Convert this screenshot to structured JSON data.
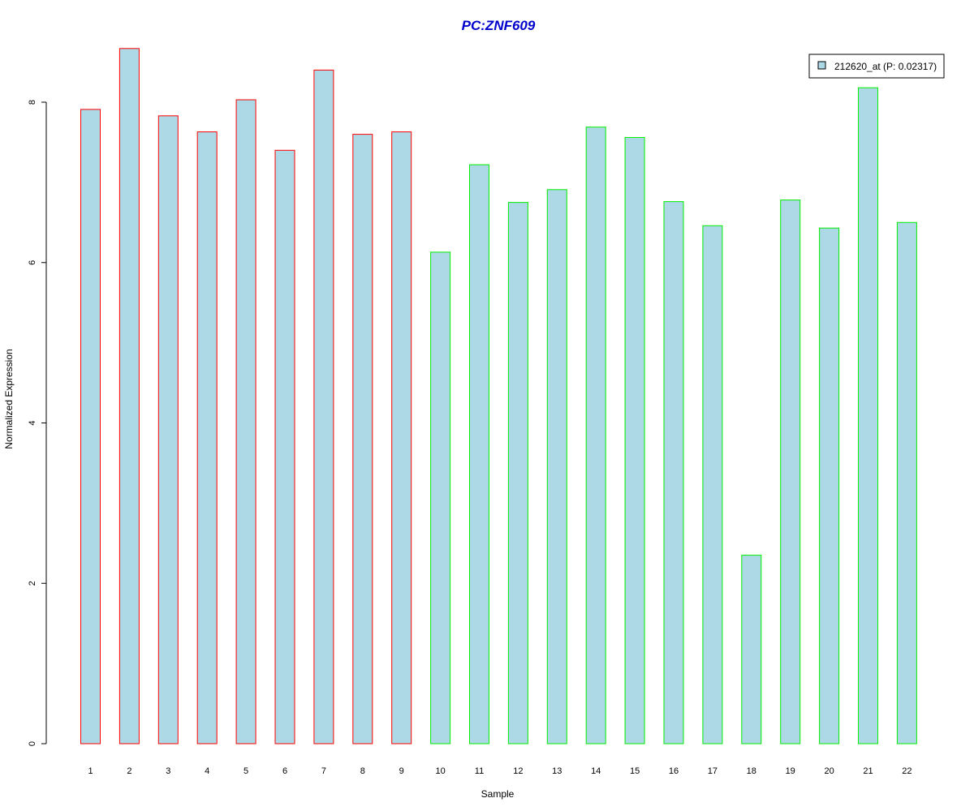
{
  "chart_data": {
    "type": "bar",
    "title": "PC:ZNF609",
    "xlabel": "Sample",
    "ylabel": "Normalized Expression",
    "ylim": [
      0,
      8.7
    ],
    "yticks": [
      0,
      2,
      4,
      6,
      8
    ],
    "categories": [
      "1",
      "2",
      "3",
      "4",
      "5",
      "6",
      "7",
      "8",
      "9",
      "10",
      "11",
      "12",
      "13",
      "14",
      "15",
      "16",
      "17",
      "18",
      "19",
      "20",
      "21",
      "22"
    ],
    "series": [
      {
        "name": "212620_at (P: 0.02317)",
        "values": [
          7.91,
          8.67,
          7.83,
          7.63,
          8.03,
          7.4,
          8.4,
          7.6,
          7.63,
          6.13,
          7.22,
          6.75,
          6.91,
          7.69,
          7.56,
          6.76,
          6.46,
          2.35,
          6.78,
          6.43,
          8.18,
          6.5
        ]
      }
    ],
    "group_sizes": [
      9,
      13
    ],
    "colors": {
      "bar_fill": "#add8e6",
      "group1_border": "#ff0000",
      "group2_border": "#00ee00",
      "title": "#0000cd",
      "axis": "#000000"
    },
    "legend": {
      "placement": "top-right",
      "label": "212620_at (P: 0.02317)"
    },
    "grid": false
  }
}
